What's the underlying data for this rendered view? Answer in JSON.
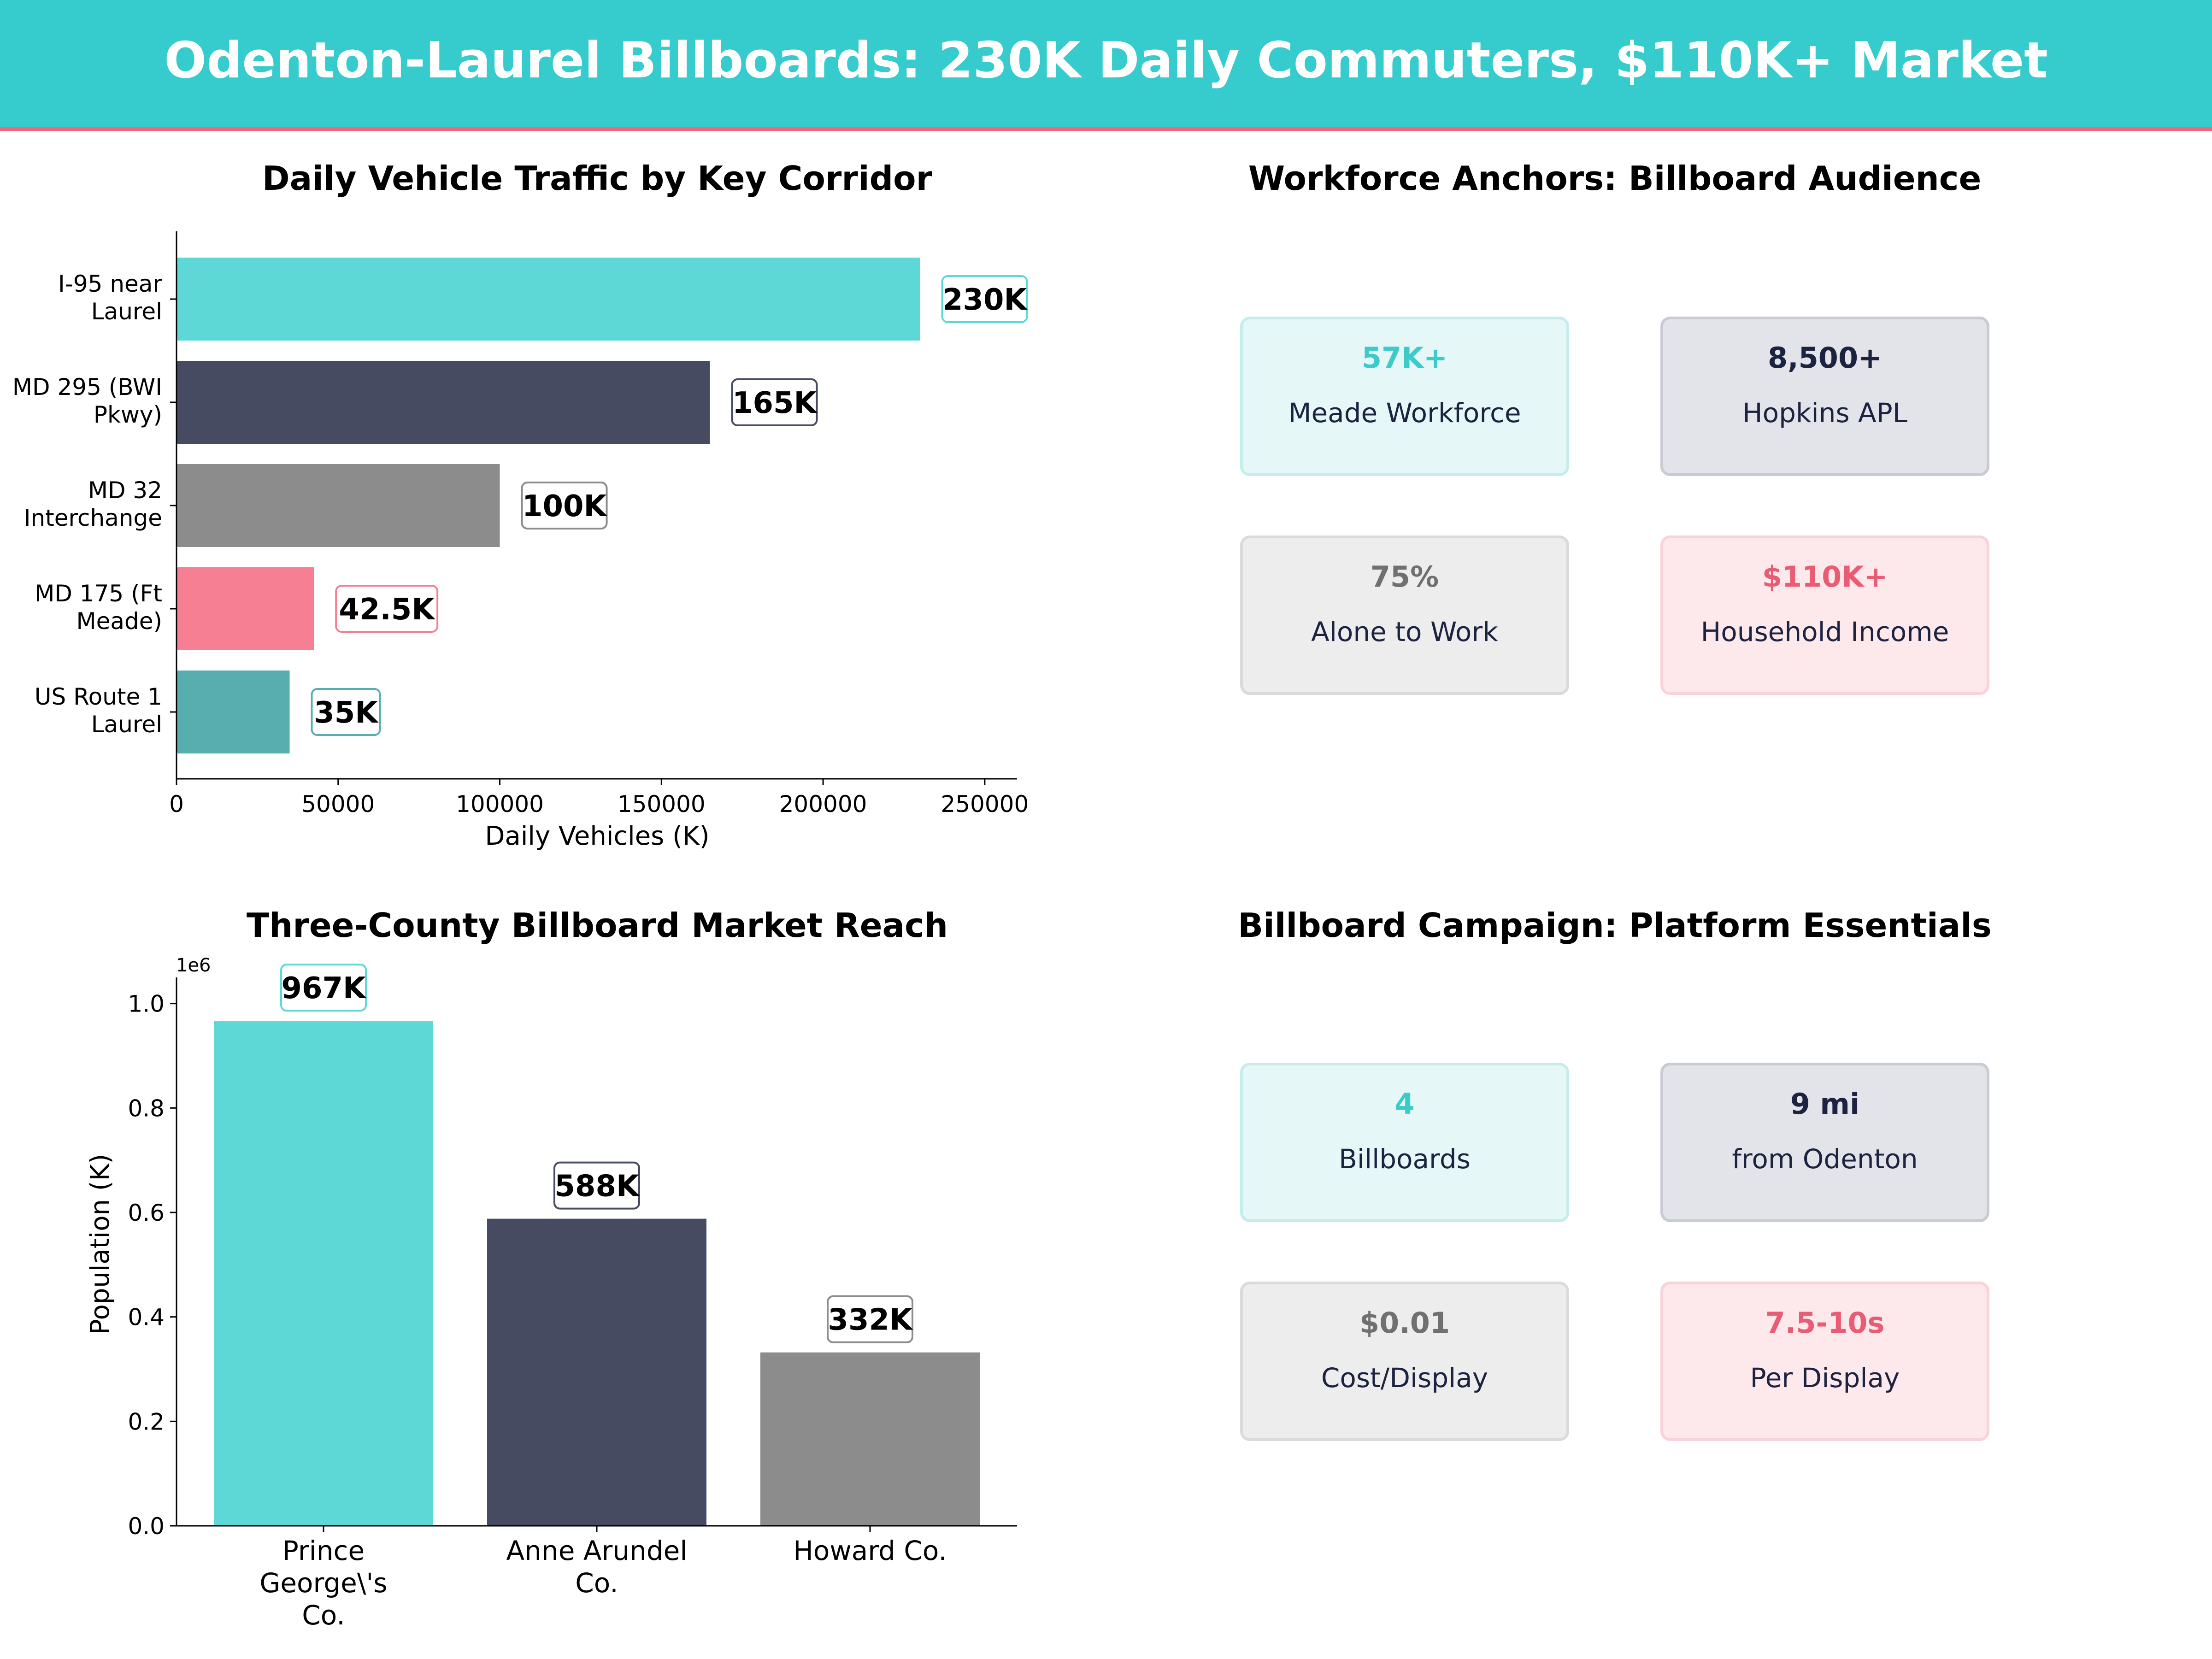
{
  "banner": {
    "title": "Odenton-Laurel Billboards: 230K Daily Commuters, $110K+ Market",
    "bg_color": "#36CBCC",
    "accent_line_color": "#F0667A"
  },
  "colors": {
    "teal": "#5DD8D6",
    "teal_dark": "#58AEAF",
    "pink": "#F77F93",
    "gray": "#8C8C8C",
    "navy": "#464B62"
  },
  "chart_data": [
    {
      "type": "bar",
      "orientation": "horizontal",
      "title": "Daily Vehicle Traffic by Key Corridor",
      "xlabel": "Daily Vehicles (K)",
      "ylabel": "",
      "categories": [
        [
          "US Route 1",
          "Laurel"
        ],
        [
          "MD 175 (Ft",
          "Meade)"
        ],
        [
          "MD 32",
          "Interchange"
        ],
        [
          "MD 295 (BWI",
          "Pkwy)"
        ],
        [
          "I-95 near",
          "Laurel"
        ]
      ],
      "values": [
        35000,
        42500,
        100000,
        165000,
        230000
      ],
      "data_labels": [
        "35K",
        "42.5K",
        "100K",
        "165K",
        "230K"
      ],
      "bar_colors": [
        "#58AEAF",
        "#F77F93",
        "#8C8C8C",
        "#464B62",
        "#5DD8D6"
      ],
      "xlim": [
        0,
        260000
      ],
      "xticks": [
        0,
        50000,
        100000,
        150000,
        200000,
        250000
      ],
      "xtick_labels": [
        "0",
        "50000",
        "100000",
        "150000",
        "200000",
        "250000"
      ],
      "grid": false
    },
    {
      "type": "bar",
      "orientation": "vertical",
      "title": "Three-County Billboard Market Reach",
      "xlabel": "",
      "ylabel": "Population (K)",
      "offset_text": "1e6",
      "categories": [
        [
          "Prince",
          "George\\'s",
          "Co."
        ],
        [
          "Anne Arundel",
          "Co."
        ],
        [
          "Howard Co."
        ]
      ],
      "values": [
        967000,
        588000,
        332000
      ],
      "data_labels": [
        "967K",
        "588K",
        "332K"
      ],
      "bar_colors": [
        "#5DD8D6",
        "#464B62",
        "#8C8C8C"
      ],
      "ylim": [
        0,
        1050000
      ],
      "yticks": [
        0,
        200000,
        400000,
        600000,
        800000,
        1000000
      ],
      "ytick_labels": [
        "0.0",
        "0.2",
        "0.4",
        "0.6",
        "0.8",
        "1.0"
      ],
      "grid": false
    }
  ],
  "panels": [
    {
      "title": "Workforce Anchors: Billboard Audience",
      "cards": [
        {
          "value": "57K+",
          "label": "Meade Workforce",
          "style": "teal"
        },
        {
          "value": "8,500+",
          "label": "Hopkins APL",
          "style": "navy"
        },
        {
          "value": "75%",
          "label": "Alone to Work",
          "style": "gray"
        },
        {
          "value": "$110K+",
          "label": "Household Income",
          "style": "pink"
        }
      ]
    },
    {
      "title": "Billboard Campaign: Platform Essentials",
      "cards": [
        {
          "value": "4",
          "label": "Billboards",
          "style": "teal"
        },
        {
          "value": "9 mi",
          "label": "from Odenton",
          "style": "navy"
        },
        {
          "value": "$0.01",
          "label": "Cost/Display",
          "style": "gray"
        },
        {
          "value": "7.5-10s",
          "label": "Per Display",
          "style": "pink"
        }
      ]
    }
  ],
  "card_styles": {
    "teal": {
      "fill": "#E5F7F7",
      "stroke": "#C4EDEC",
      "value_color": "#3CCACB",
      "label_color": "#1C2340"
    },
    "navy": {
      "fill": "#E3E4E9",
      "stroke": "#C9CBD3",
      "value_color": "#1C2340",
      "label_color": "#1C2340"
    },
    "gray": {
      "fill": "#EDEDED",
      "stroke": "#DADADA",
      "value_color": "#707070",
      "label_color": "#1C2340"
    },
    "pink": {
      "fill": "#FDE8EB",
      "stroke": "#F8D3DA",
      "value_color": "#E85C74",
      "label_color": "#1C2340"
    }
  }
}
